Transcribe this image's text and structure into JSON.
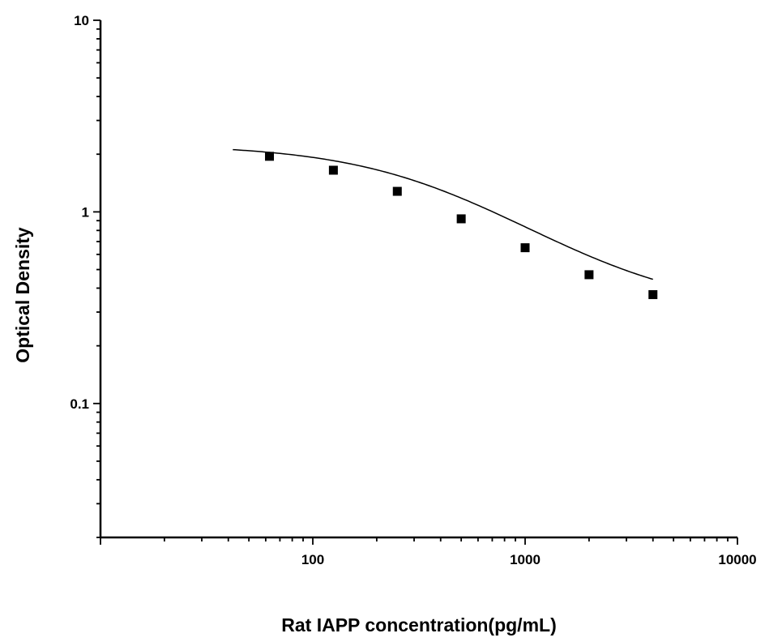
{
  "chart_data": {
    "type": "scatter",
    "title": "",
    "xlabel": "Rat IAPP concentration(pg/mL)",
    "ylabel": "Optical Density",
    "x_scale": "log",
    "y_scale": "log",
    "xlim": [
      10,
      10000
    ],
    "ylim": [
      0.02,
      10
    ],
    "x_ticks": [
      {
        "value": 100,
        "label": "100"
      },
      {
        "value": 1000,
        "label": "1000"
      },
      {
        "value": 10000,
        "label": "10000"
      }
    ],
    "y_ticks": [
      {
        "value": 0.1,
        "label": "0.1"
      },
      {
        "value": 1,
        "label": "1"
      },
      {
        "value": 10,
        "label": "10"
      }
    ],
    "grid": false,
    "legend": "none",
    "series": [
      {
        "marker": "square",
        "color": "#000000",
        "x": [
          62.5,
          125,
          250,
          500,
          1000,
          2000,
          4000
        ],
        "y": [
          1.95,
          1.65,
          1.28,
          0.92,
          0.65,
          0.47,
          0.37
        ]
      }
    ],
    "fit_curve": {
      "model": "4PL",
      "A": 2.25,
      "D": 0.3,
      "C": 420,
      "B": 1.12,
      "x_range": [
        42,
        4000
      ],
      "color": "#000000"
    }
  }
}
